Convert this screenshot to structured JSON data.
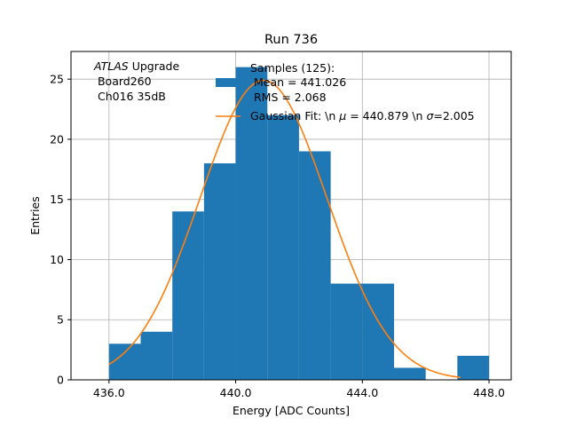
{
  "chart_data": {
    "type": "histogram",
    "title": "Run 736",
    "xlabel": "Energy [ADC Counts]",
    "ylabel": "Entries",
    "xlim": [
      434.8,
      448.7
    ],
    "ylim": [
      0,
      27.3
    ],
    "grid": true,
    "x_ticks": [
      436,
      440,
      444,
      448
    ],
    "x_tick_labels": [
      "436.0",
      "440.0",
      "444.0",
      "448.0"
    ],
    "y_ticks": [
      0,
      5,
      10,
      15,
      20,
      25
    ],
    "y_tick_labels": [
      "0",
      "5",
      "10",
      "15",
      "20",
      "25"
    ],
    "bin_edges": [
      436,
      437,
      438,
      439,
      440,
      441,
      442,
      443,
      444,
      445,
      446,
      447,
      448
    ],
    "bin_counts": [
      3,
      4,
      14,
      18,
      26,
      22,
      19,
      8,
      8,
      1,
      0,
      2
    ],
    "bar_color": "#1f77b4",
    "fit": {
      "mu": 440.879,
      "sigma": 2.005,
      "amplitude": 24.9,
      "x_range": [
        436,
        447.1
      ],
      "color": "#ff7f0e"
    },
    "annotation": {
      "italic": "ATLAS",
      "rest": " Upgrade",
      "line2": " Board260",
      "line3": " Ch016 35dB"
    },
    "legend": {
      "position": "top-right",
      "hist_label_line1": "Samples (125):",
      "hist_label_line2": " Mean = 441.026",
      "hist_label_line3": " RMS = 2.068",
      "fit_label_part1": "Gaussian Fit: \\n ",
      "fit_label_mu": "μ",
      "fit_label_part2": " = 440.879 \\n ",
      "fit_label_sigma": "σ",
      "fit_label_part3": "=2.005"
    }
  }
}
